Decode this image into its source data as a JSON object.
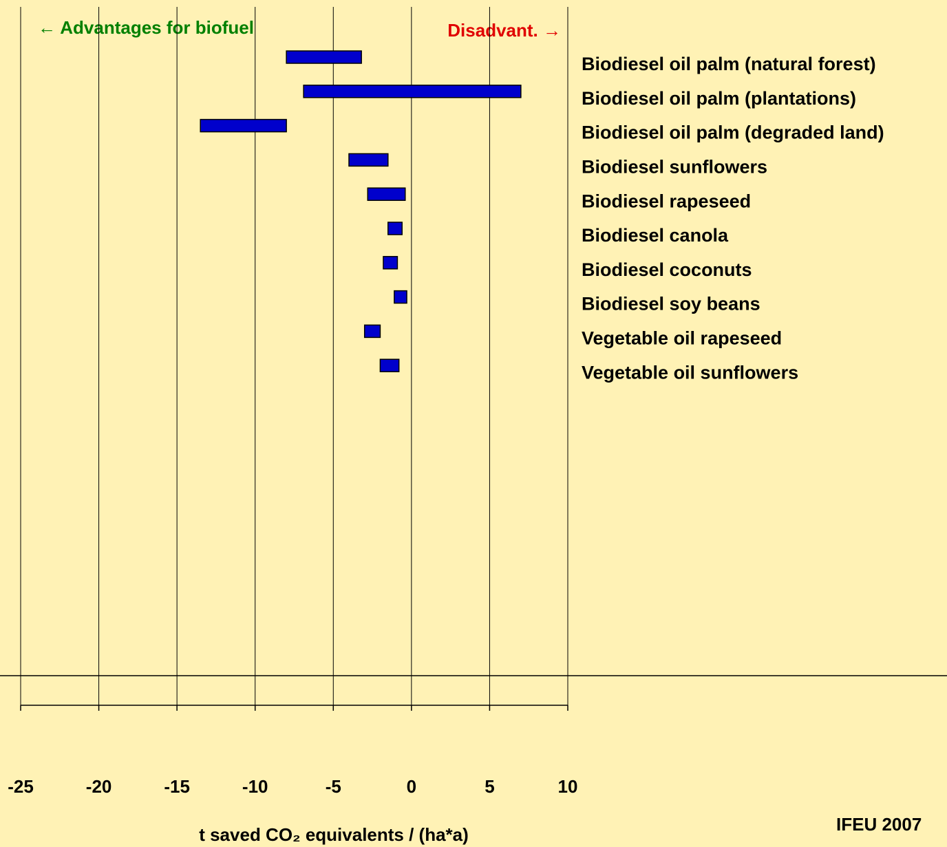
{
  "chart_data": {
    "type": "range-bar",
    "categories": [
      "Biodiesel oil palm (natural forest)",
      "Biodiesel oil palm (plantations)",
      "Biodiesel oil palm (degraded land)",
      "Biodiesel sunflowers",
      "Biodiesel rapeseed",
      "Biodiesel canola",
      "Biodiesel coconuts",
      "Biodiesel soy beans",
      "Vegetable oil rapeseed",
      "Vegetable oil sunflowers"
    ],
    "low": [
      -8,
      -6.9,
      -13.5,
      -4,
      -2.8,
      -1.5,
      -1.8,
      -1.1,
      -3,
      -2
    ],
    "high": [
      -3.2,
      7,
      -8,
      -1.5,
      -0.4,
      -0.6,
      -0.9,
      -0.3,
      -2,
      -0.8
    ],
    "color": "#0000cc",
    "xlim": [
      -25,
      10
    ],
    "xticks": [
      -25,
      -20,
      -15,
      -10,
      -5,
      0,
      5,
      10
    ],
    "grid": true,
    "xlabel": "t saved CO₂ equivalents / (ha*a)",
    "annotations": [
      "← Advantages for biofuel",
      "Disadvant. →"
    ],
    "source": "IFEU 2007"
  }
}
